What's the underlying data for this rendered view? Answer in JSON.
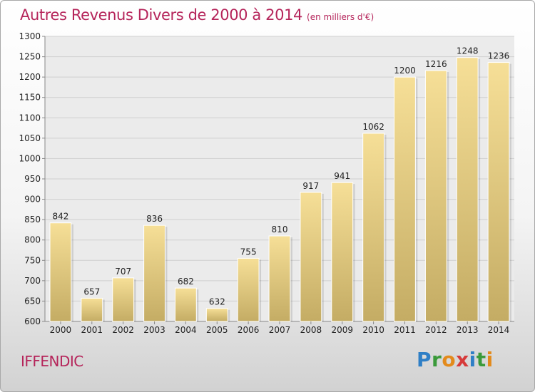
{
  "header": {
    "title": "Autres Revenus Divers de 2000 à 2014",
    "subtitle": "(en milliers d'€)"
  },
  "footer": {
    "commune": "IFFENDIC",
    "brand_letters": [
      {
        "ch": "P",
        "color": "#2f7fc6"
      },
      {
        "ch": "r",
        "color": "#3a9a3a"
      },
      {
        "ch": "o",
        "color": "#e38a1b"
      },
      {
        "ch": "x",
        "color": "#d63a3a"
      },
      {
        "ch": "i",
        "color": "#2f7fc6"
      },
      {
        "ch": "t",
        "color": "#3a9a3a"
      },
      {
        "ch": "i",
        "color": "#e38a1b"
      }
    ]
  },
  "colors": {
    "bar_top": "#f6df97",
    "bar_bottom": "#c4ac64",
    "title": "#b5245a",
    "grid": "#cfcfcf"
  },
  "chart_data": {
    "type": "bar",
    "title": "Autres Revenus Divers de 2000 à 2014",
    "subtitle": "(en milliers d'€)",
    "xlabel": "",
    "ylabel": "",
    "categories": [
      "2000",
      "2001",
      "2002",
      "2003",
      "2004",
      "2005",
      "2006",
      "2007",
      "2008",
      "2009",
      "2010",
      "2011",
      "2012",
      "2013",
      "2014"
    ],
    "values": [
      842,
      657,
      707,
      836,
      682,
      632,
      755,
      810,
      917,
      941,
      1062,
      1200,
      1216,
      1248,
      1236
    ],
    "ylim": [
      600,
      1300
    ],
    "yticks": [
      600,
      650,
      700,
      750,
      800,
      850,
      900,
      950,
      1000,
      1050,
      1100,
      1150,
      1200,
      1250,
      1300
    ],
    "grid": true,
    "legend": "none"
  }
}
